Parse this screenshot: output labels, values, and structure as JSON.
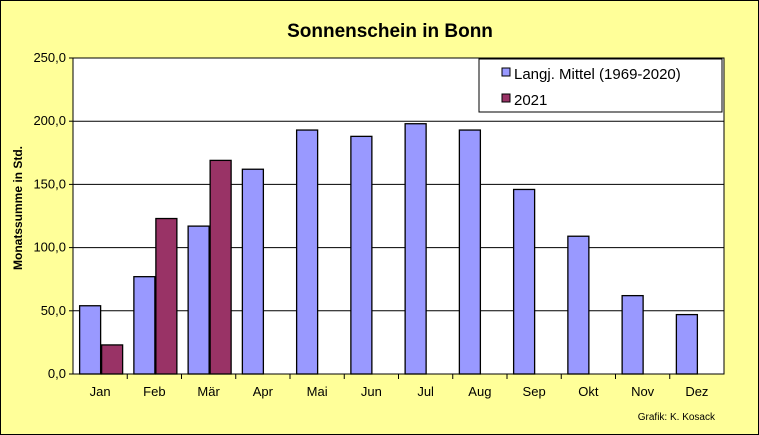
{
  "chart_data": {
    "type": "bar",
    "title": "Sonnenschein in Bonn",
    "ylabel": "Monatssumme in Std.",
    "xlabel": "",
    "categories": [
      "Jan",
      "Feb",
      "Mär",
      "Apr",
      "Mai",
      "Jun",
      "Jul",
      "Aug",
      "Sep",
      "Okt",
      "Nov",
      "Dez"
    ],
    "series": [
      {
        "name": "Langj. Mittel (1969-2020)",
        "color": "#9999ff",
        "values": [
          54,
          77,
          117,
          162,
          193,
          188,
          198,
          193,
          146,
          109,
          62,
          47
        ]
      },
      {
        "name": "2021",
        "color": "#993366",
        "values": [
          23,
          123,
          169,
          null,
          null,
          null,
          null,
          null,
          null,
          null,
          null,
          null
        ]
      }
    ],
    "ylim": [
      0,
      250
    ],
    "yticks": [
      "0,0",
      "50,0",
      "100,0",
      "150,0",
      "200,0",
      "250,0"
    ],
    "grid": true,
    "legend_position": "top-right",
    "background_color": "#ffff99",
    "plot_background_color": "#ffffff"
  },
  "credit": "Grafik:  K. Kosack"
}
